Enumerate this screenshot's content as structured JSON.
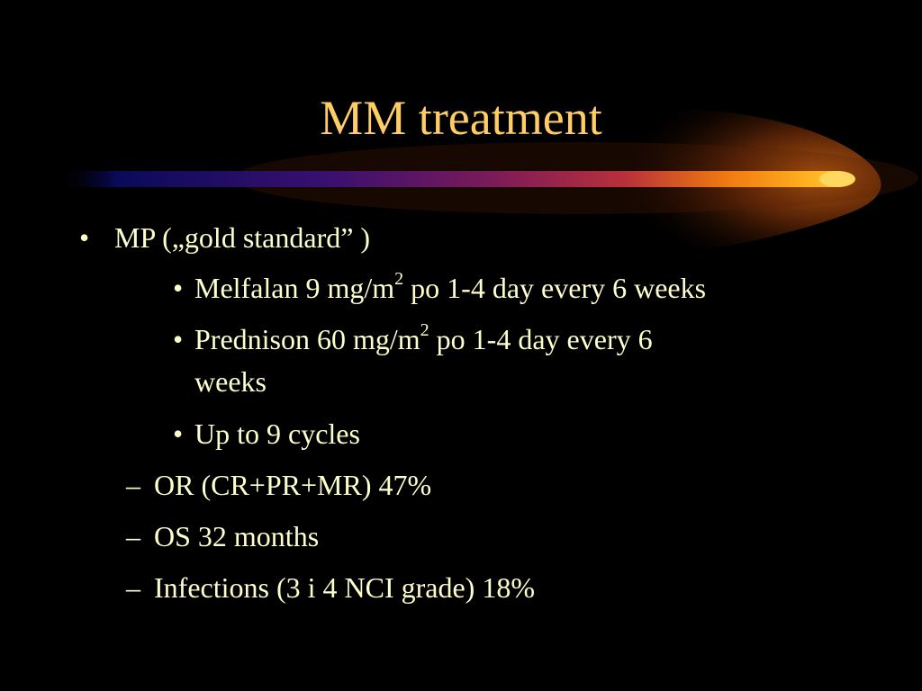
{
  "slide": {
    "title": "MM treatment",
    "colors": {
      "background": "#000000",
      "title": "#FFCC66",
      "body_text": "#FFFFCC"
    },
    "bullet_marker": "•",
    "dash_marker": "–",
    "items": [
      {
        "text": "MP („gold standard” )"
      },
      {
        "pre": "Melfalan 9 mg/m",
        "sup": "2",
        "post": " po 1-4 day every 6 weeks"
      },
      {
        "pre": "Prednison 60 mg/m",
        "sup": "2",
        "post": " po 1-4 day every 6",
        "continuation": "weeks"
      },
      {
        "text": "Up to  9 cycles"
      },
      {
        "text": "OR (CR+PR+MR) 47%"
      },
      {
        "text": "OS  32 months"
      },
      {
        "text": "Infections (3 i 4 NCI grade) 18%"
      }
    ]
  }
}
